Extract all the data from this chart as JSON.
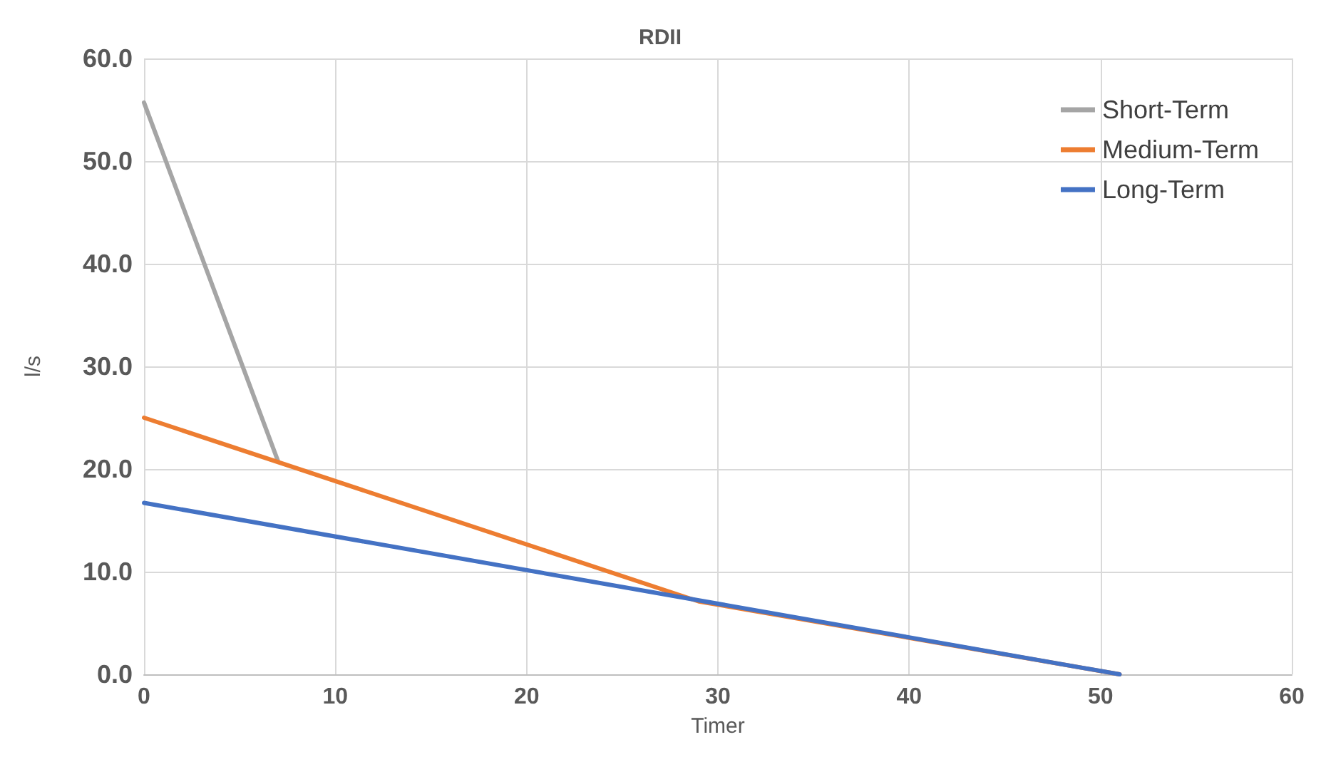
{
  "chart_data": {
    "type": "line",
    "title": "RDII",
    "xlabel": "Timer",
    "ylabel": "l/s",
    "series": [
      {
        "name": "Short-Term",
        "color": "#a5a5a5",
        "x": [
          0,
          7
        ],
        "values": [
          55.7,
          20.8
        ]
      },
      {
        "name": "Medium-Term",
        "color": "#ed7d31",
        "x": [
          0,
          29,
          51
        ],
        "values": [
          25,
          7.1,
          0
        ]
      },
      {
        "name": "Long-Term",
        "color": "#4472c4",
        "x": [
          0,
          51
        ],
        "values": [
          16.7,
          0
        ]
      }
    ],
    "xlim": [
      0,
      60
    ],
    "xticks": [
      0,
      10,
      20,
      30,
      40,
      50,
      60
    ],
    "ylim": [
      0,
      60
    ],
    "yticks": [
      {
        "value": 0,
        "label": "0.0"
      },
      {
        "value": 10,
        "label": "10.0"
      },
      {
        "value": 20,
        "label": "20.0"
      },
      {
        "value": 30,
        "label": "30.0"
      },
      {
        "value": 40,
        "label": "40.0"
      },
      {
        "value": 50,
        "label": "50.0"
      },
      {
        "value": 60,
        "label": "60.0"
      }
    ],
    "grid": true,
    "legend": "top right",
    "marker": "none",
    "line_style": "solid"
  }
}
